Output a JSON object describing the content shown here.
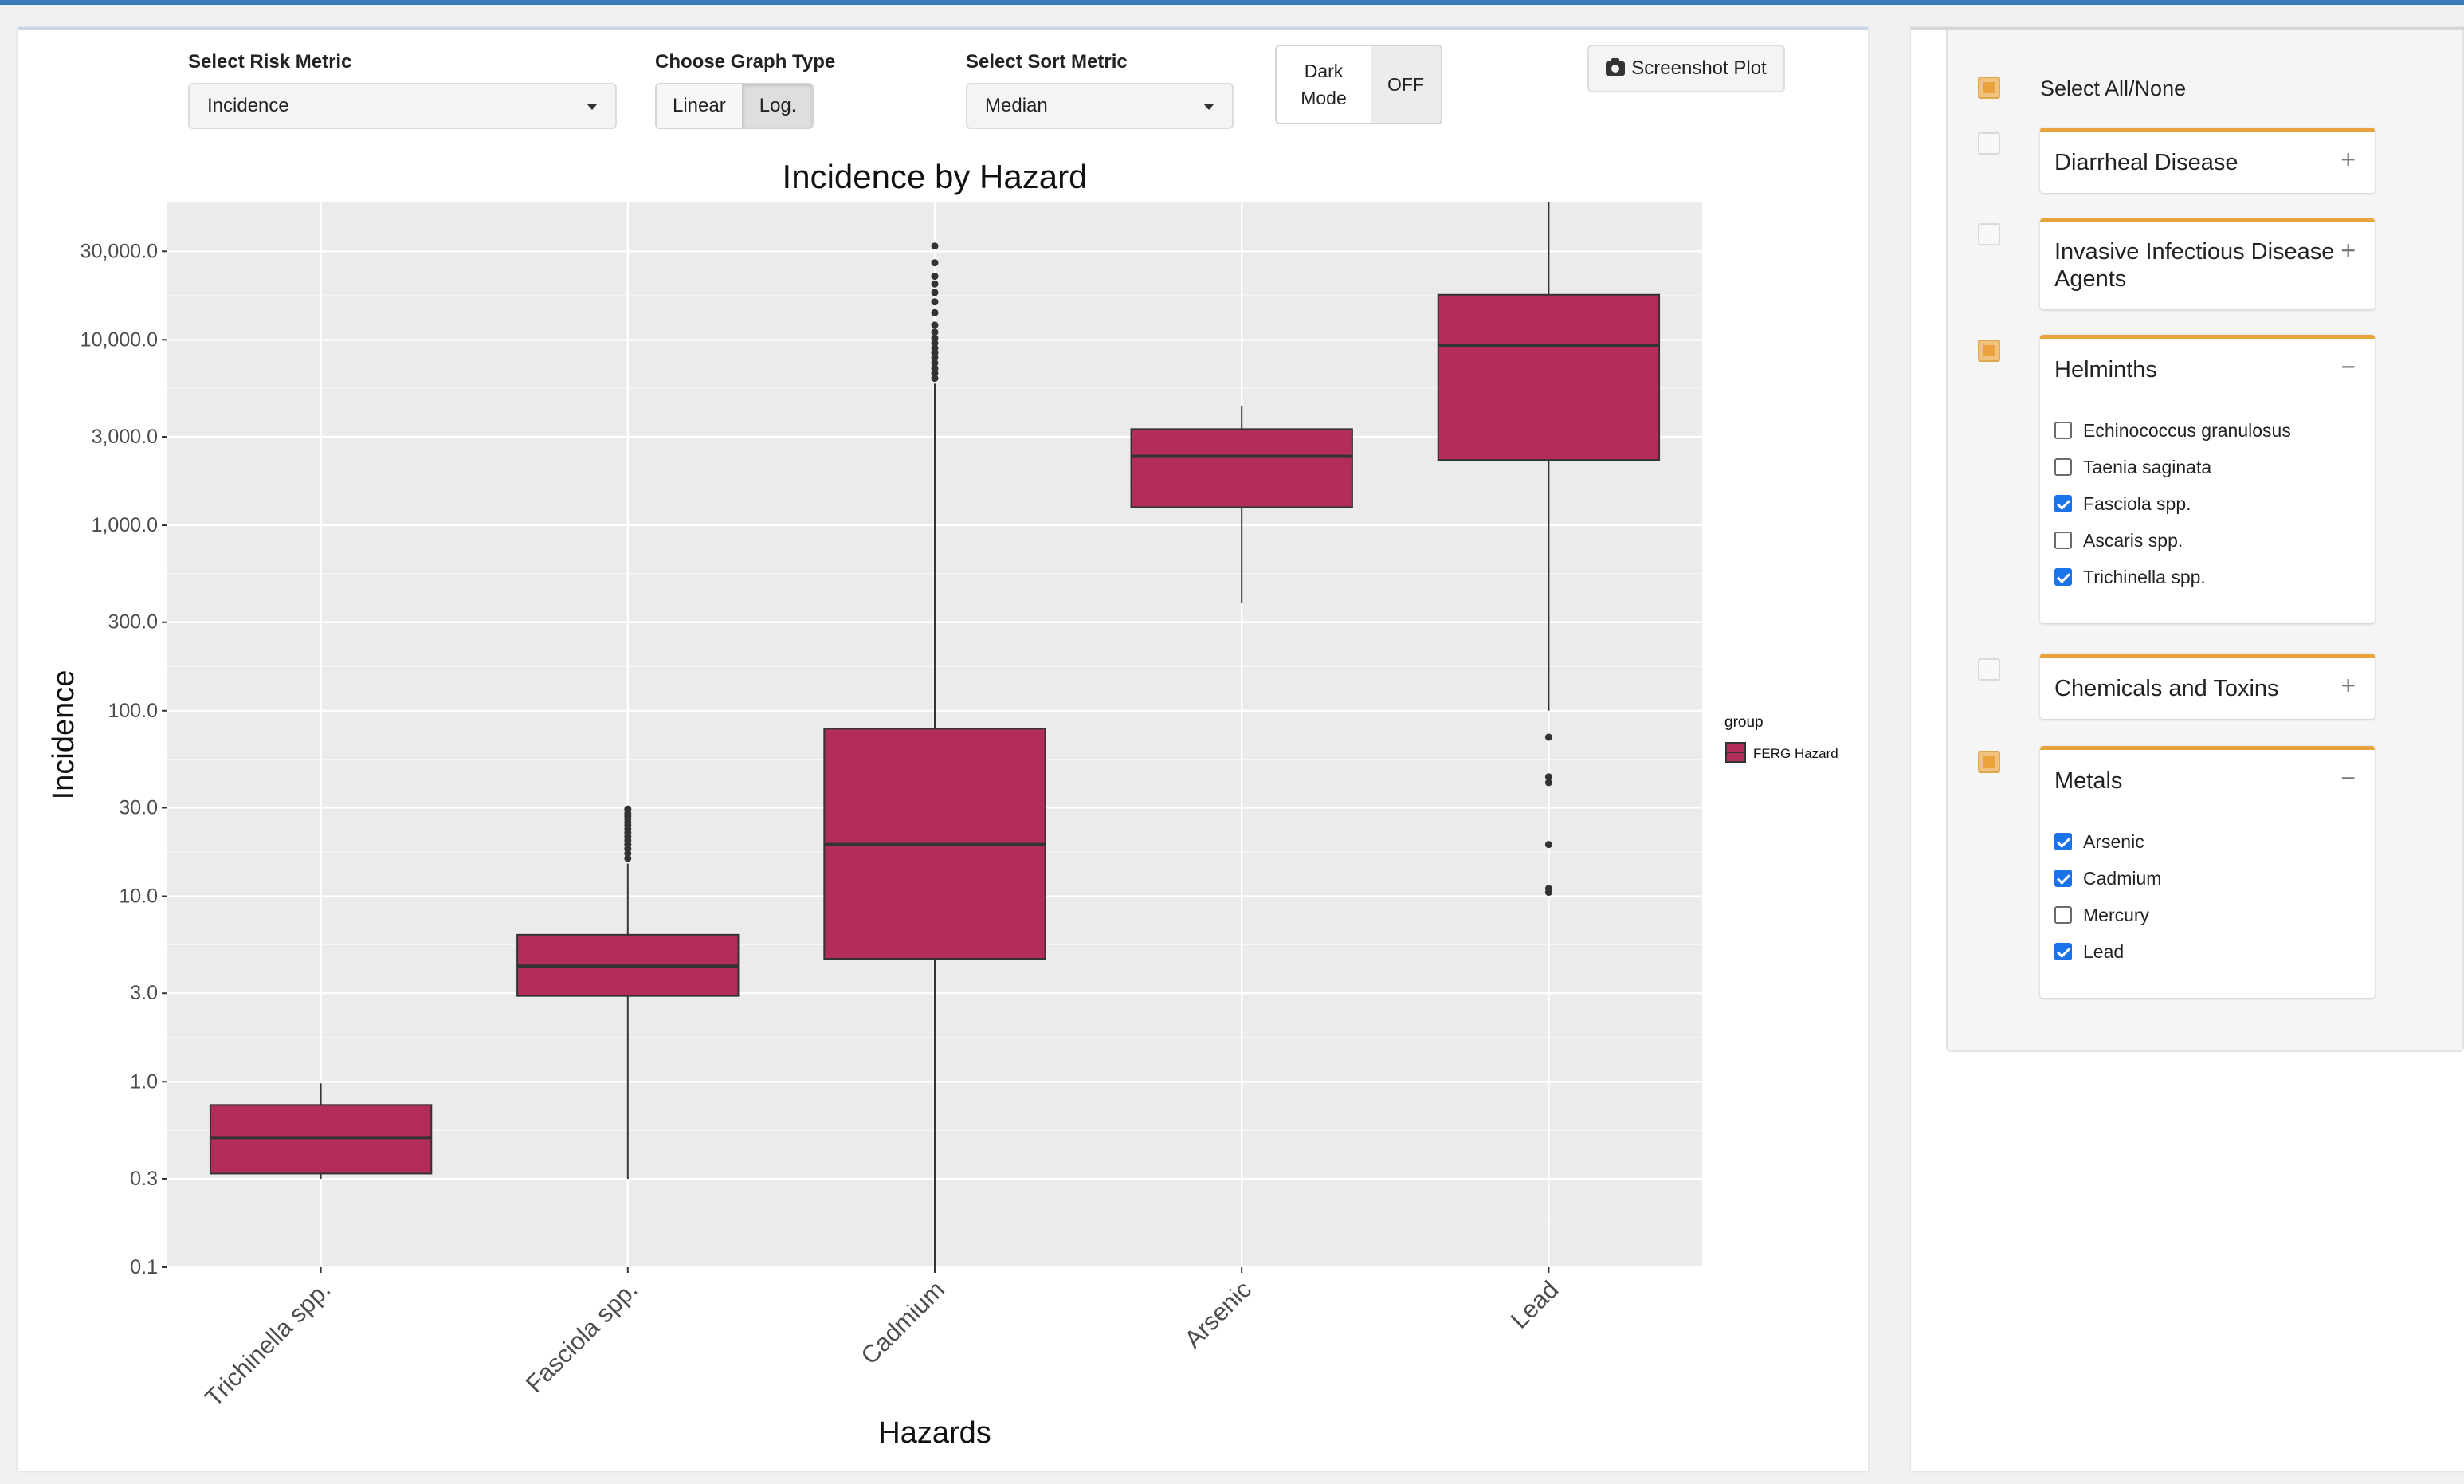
{
  "controls": {
    "risk_metric": {
      "label": "Select Risk Metric",
      "value": "Incidence"
    },
    "graph_type": {
      "label": "Choose Graph Type",
      "options": [
        "Linear",
        "Log."
      ],
      "selected": "Log."
    },
    "sort_metric": {
      "label": "Select Sort Metric",
      "value": "Median"
    },
    "dark_mode": {
      "label": "Dark Mode",
      "state": "OFF"
    },
    "screenshot": {
      "label": "Screenshot Plot",
      "icon": "camera-icon"
    }
  },
  "chart_data": {
    "type": "boxplot",
    "title": "Incidence by Hazard",
    "xlabel": "Hazards",
    "ylabel": "Incidence",
    "y_scale": "log",
    "grid": true,
    "y_ticks": [
      0.1,
      0.3,
      1.0,
      3.0,
      10.0,
      30.0,
      100.0,
      300.0,
      1000.0,
      3000.0,
      10000.0,
      30000.0
    ],
    "y_tick_labels": [
      "0.1",
      "0.3",
      "1.0",
      "3.0",
      "10.0",
      "30.0",
      "100.0",
      "300.0",
      "1,000.0",
      "3,000.0",
      "10,000.0",
      "30,000.0"
    ],
    "ylim": [
      0.1,
      55000
    ],
    "categories": [
      "Trichinella spp.",
      "Fasciola spp.",
      "Cadmium",
      "Arsenic",
      "Lead"
    ],
    "legend": {
      "title": "group",
      "entries": [
        "FERG Hazard"
      ],
      "position": "right"
    },
    "fill_color": "#b22d5a",
    "panel_color": "#ebebeb",
    "boxes": [
      {
        "name": "Trichinella spp.",
        "whisker_low": 0.3,
        "q1": 0.32,
        "median": 0.5,
        "q3": 0.75,
        "whisker_high": 0.98,
        "outliers": []
      },
      {
        "name": "Fasciola spp.",
        "whisker_low": 0.3,
        "q1": 2.9,
        "median": 4.2,
        "q3": 6.2,
        "whisker_high": 15,
        "outliers": [
          16,
          17,
          18,
          19,
          20,
          21,
          22,
          23,
          24,
          25,
          26,
          27,
          28,
          29.5
        ]
      },
      {
        "name": "Cadmium",
        "whisker_low": 0.1,
        "q1": 4.6,
        "median": 19,
        "q3": 80,
        "whisker_high": 5800,
        "outliers": [
          6200,
          6600,
          7000,
          7500,
          8000,
          8500,
          9000,
          9600,
          10200,
          11000,
          12000,
          14000,
          16000,
          18000,
          20000,
          22000,
          26000,
          32000
        ]
      },
      {
        "name": "Arsenic",
        "whisker_low": 380,
        "q1": 1250,
        "median": 2350,
        "q3": 3300,
        "whisker_high": 4400,
        "outliers": []
      },
      {
        "name": "Lead",
        "whisker_low": 100,
        "q1": 2250,
        "median": 9300,
        "q3": 17500,
        "whisker_high": 55000,
        "outliers": [
          72,
          44,
          41,
          19,
          11,
          10.5
        ]
      }
    ]
  },
  "sidebar": {
    "select_all": {
      "label": "Select All/None",
      "state": "partial"
    },
    "groups": [
      {
        "title": "Diarrheal Disease",
        "state": "none",
        "expanded": false,
        "toggle": "+",
        "items": []
      },
      {
        "title": "Invasive Infectious Disease Agents",
        "state": "none",
        "expanded": false,
        "toggle": "+",
        "items": []
      },
      {
        "title": "Helminths",
        "state": "partial",
        "expanded": true,
        "toggle": "−",
        "items": [
          {
            "label": "Echinococcus granulosus",
            "checked": false
          },
          {
            "label": "Taenia saginata",
            "checked": false
          },
          {
            "label": "Fasciola spp.",
            "checked": true
          },
          {
            "label": "Ascaris spp.",
            "checked": false
          },
          {
            "label": "Trichinella spp.",
            "checked": true
          }
        ]
      },
      {
        "title": "Chemicals and Toxins",
        "state": "none",
        "expanded": false,
        "toggle": "+",
        "items": []
      },
      {
        "title": "Metals",
        "state": "partial",
        "expanded": true,
        "toggle": "−",
        "items": [
          {
            "label": "Arsenic",
            "checked": true
          },
          {
            "label": "Cadmium",
            "checked": true
          },
          {
            "label": "Mercury",
            "checked": false
          },
          {
            "label": "Lead",
            "checked": true
          }
        ]
      }
    ]
  }
}
